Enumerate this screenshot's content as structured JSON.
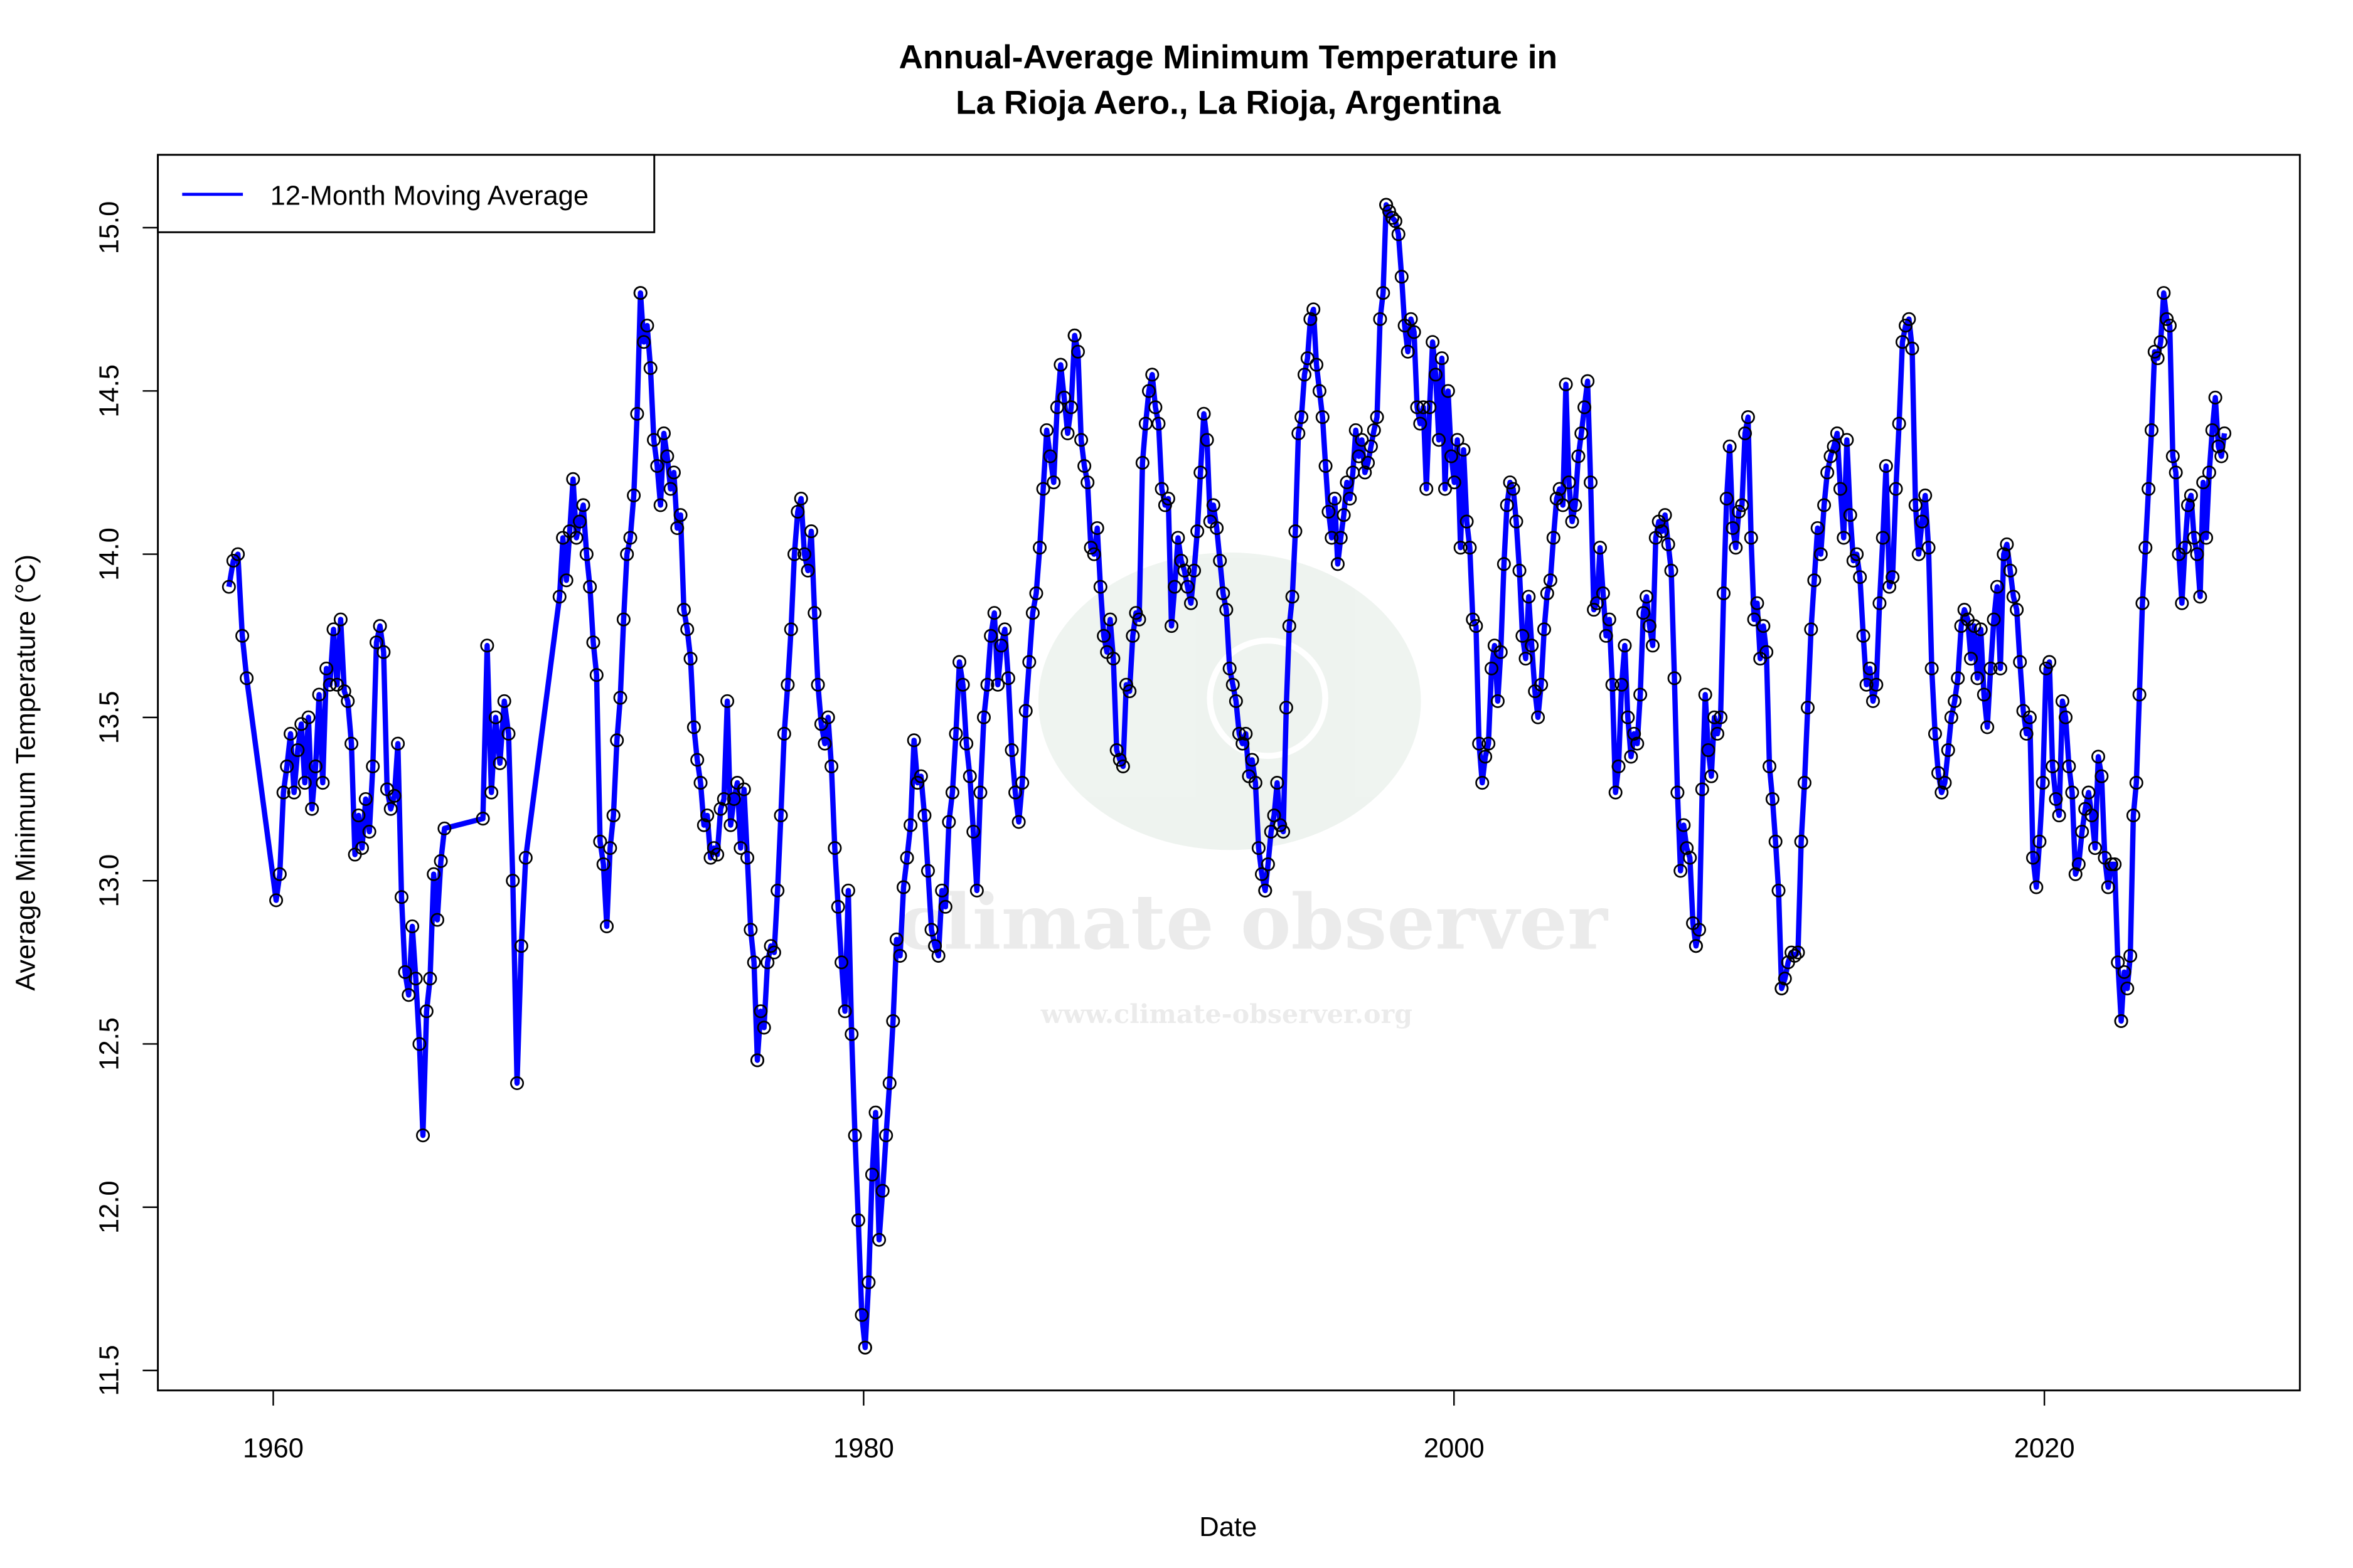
{
  "chart_data": {
    "type": "line",
    "title": [
      "Annual-Average Minimum Temperature in",
      "La Rioja Aero., La Rioja, Argentina"
    ],
    "xlabel": "Date",
    "ylabel": "Average Minimum Temperature (°C)",
    "xlim": [
      1956,
      2029
    ],
    "ylim": [
      11.45,
      15.25
    ],
    "x_ticks": [
      1960,
      1980,
      2000,
      2020
    ],
    "y_ticks": [
      "11.5",
      "12.0",
      "12.5",
      "13.0",
      "13.5",
      "14.0",
      "14.5",
      "15.0"
    ],
    "grid": false,
    "legend": {
      "position": "top-left",
      "entries": [
        "12-Month Moving Average"
      ]
    },
    "line_color": "#0000ff",
    "marker_color": "#000000",
    "series": [
      {
        "name": "12-Month Moving Average",
        "segments": [
          {
            "from": 1958.5,
            "to": 1959.1,
            "values": [
              13.9,
              13.98,
              14.0,
              13.75,
              13.62
            ]
          },
          {
            "from": 1960.1,
            "to": 1965.8,
            "values": [
              12.94,
              13.02,
              13.27,
              13.35,
              13.45,
              13.27,
              13.4,
              13.48,
              13.3,
              13.5,
              13.22,
              13.35,
              13.57,
              13.3,
              13.65,
              13.6,
              13.77,
              13.6,
              13.8,
              13.58,
              13.55,
              13.42,
              13.08,
              13.2,
              13.1,
              13.25,
              13.15,
              13.35,
              13.73,
              13.78,
              13.7,
              13.28,
              13.22,
              13.26,
              13.42,
              12.95,
              12.72,
              12.65,
              12.86,
              12.7,
              12.5,
              12.22,
              12.6,
              12.7,
              13.02,
              12.88,
              13.06,
              13.16
            ]
          },
          {
            "from": 1967.1,
            "to": 1968.55,
            "values": [
              13.19,
              13.72,
              13.27,
              13.5,
              13.36,
              13.55,
              13.45,
              13.0,
              12.38,
              12.8,
              13.07
            ]
          },
          {
            "from": 1969.7,
            "to": 1972.44,
            "values": [
              13.87,
              14.05,
              13.92,
              14.07,
              14.23,
              14.05,
              14.1,
              14.15,
              14.0,
              13.9,
              13.73,
              13.63,
              13.12,
              13.05,
              12.86,
              13.1,
              13.2,
              13.43,
              13.56,
              13.8,
              14.0,
              14.05,
              14.18,
              14.43,
              14.8
            ]
          },
          {
            "from": 1972.44,
            "to": 1976.4,
            "values": [
              14.8,
              14.65,
              14.7,
              14.57,
              14.35,
              14.27,
              14.15,
              14.37,
              14.3,
              14.2,
              14.25,
              14.08,
              14.12,
              13.83,
              13.77,
              13.68,
              13.47,
              13.37,
              13.3,
              13.17,
              13.2,
              13.07,
              13.1,
              13.08,
              13.22,
              13.25,
              13.55,
              13.17,
              13.25,
              13.3,
              13.1,
              13.28,
              13.07,
              12.85,
              12.75,
              12.45
            ]
          },
          {
            "from": 1976.4,
            "to": 1980.05,
            "values": [
              12.45,
              12.6,
              12.55,
              12.75,
              12.8,
              12.78,
              12.97,
              13.2,
              13.45,
              13.6,
              13.77,
              14.0,
              14.13,
              14.17,
              14.0,
              13.95,
              14.07,
              13.82,
              13.6,
              13.48,
              13.42,
              13.5,
              13.35,
              13.1,
              12.92,
              12.75,
              12.6,
              12.97,
              12.53,
              12.22,
              11.96,
              11.67,
              11.57
            ]
          },
          {
            "from": 1980.05,
            "to": 1987.15,
            "values": [
              11.57,
              11.77,
              12.1,
              12.29,
              11.9,
              12.05,
              12.22,
              12.38,
              12.57,
              12.82,
              12.77,
              12.98,
              13.07,
              13.17,
              13.43,
              13.3,
              13.32,
              13.2,
              13.03,
              12.85,
              12.8,
              12.77,
              12.97,
              12.92,
              13.18,
              13.27,
              13.45,
              13.67,
              13.6,
              13.42,
              13.32,
              13.15,
              12.97,
              13.27,
              13.5,
              13.6,
              13.75,
              13.82,
              13.6,
              13.72,
              13.77,
              13.62,
              13.4,
              13.27,
              13.18,
              13.3,
              13.52,
              13.67,
              13.82,
              13.88,
              14.02,
              14.2,
              14.38,
              14.3,
              14.22,
              14.45,
              14.58,
              14.48,
              14.37,
              14.45,
              14.67
            ]
          },
          {
            "from": 1987.15,
            "to": 1993.6,
            "values": [
              14.67,
              14.62,
              14.35,
              14.27,
              14.22,
              14.02,
              14.0,
              14.08,
              13.9,
              13.75,
              13.7,
              13.8,
              13.68,
              13.4,
              13.37,
              13.35,
              13.6,
              13.58,
              13.75,
              13.82,
              13.8,
              14.28,
              14.4,
              14.5,
              14.55,
              14.45,
              14.4,
              14.2,
              14.15,
              14.17,
              13.78,
              13.9,
              14.05,
              13.98,
              13.95,
              13.9,
              13.85,
              13.95,
              14.07,
              14.25,
              14.43,
              14.35,
              14.1,
              14.15,
              14.08,
              13.98,
              13.88,
              13.83,
              13.65,
              13.6,
              13.55,
              13.45,
              13.42,
              13.45,
              13.32,
              13.37,
              13.3,
              13.1,
              13.02,
              12.97
            ]
          },
          {
            "from": 1993.6,
            "to": 1997.7,
            "values": [
              12.97,
              13.05,
              13.15,
              13.2,
              13.3,
              13.17,
              13.15,
              13.53,
              13.78,
              13.87,
              14.07,
              14.37,
              14.42,
              14.55,
              14.6,
              14.72,
              14.75,
              14.58,
              14.5,
              14.42,
              14.27,
              14.13,
              14.05,
              14.17,
              13.97,
              14.05,
              14.12,
              14.22,
              14.17,
              14.25,
              14.38,
              14.3,
              14.35,
              14.25,
              14.28,
              14.33,
              14.38,
              14.42,
              14.72,
              14.8,
              15.07
            ]
          },
          {
            "from": 1997.7,
            "to": 2008.2,
            "values": [
              15.07,
              15.05,
              15.03,
              15.02,
              14.98,
              14.85,
              14.7,
              14.62,
              14.72,
              14.68,
              14.45,
              14.4,
              14.45,
              14.2,
              14.45,
              14.65,
              14.55,
              14.35,
              14.6,
              14.2,
              14.5,
              14.3,
              14.22,
              14.35,
              14.02,
              14.32,
              14.1,
              14.02,
              13.8,
              13.78,
              13.42,
              13.3,
              13.38,
              13.42,
              13.65,
              13.72,
              13.55,
              13.7,
              13.97,
              14.15,
              14.22,
              14.2,
              14.1,
              13.95,
              13.75,
              13.68,
              13.87,
              13.72,
              13.58,
              13.5,
              13.6,
              13.77,
              13.88,
              13.92,
              14.05,
              14.17,
              14.2,
              14.15,
              14.52,
              14.22,
              14.1,
              14.15,
              14.3,
              14.37,
              14.45,
              14.53,
              14.22,
              13.83,
              13.85,
              14.02,
              13.88,
              13.75,
              13.8,
              13.6,
              13.27,
              13.35,
              13.6,
              13.72,
              13.5,
              13.38,
              13.45,
              13.42,
              13.57,
              13.82,
              13.87,
              13.78,
              13.72,
              14.05,
              14.1,
              14.07,
              14.12,
              14.03,
              13.95,
              13.62,
              13.27,
              13.03,
              13.17,
              13.1,
              13.07,
              12.87,
              12.8
            ]
          },
          {
            "from": 2008.2,
            "to": 2011.1,
            "values": [
              12.8,
              12.85,
              13.28,
              13.57,
              13.4,
              13.32,
              13.5,
              13.45,
              13.5,
              13.88,
              14.17,
              14.33,
              14.08,
              14.02,
              14.13,
              14.15,
              14.37,
              14.42,
              14.05,
              13.8,
              13.85,
              13.68,
              13.78,
              13.7,
              13.35,
              13.25,
              13.12,
              12.97,
              12.67
            ]
          },
          {
            "from": 2011.1,
            "to": 2022.6,
            "values": [
              12.67,
              12.7,
              12.75,
              12.78,
              12.77,
              12.78,
              13.12,
              13.3,
              13.53,
              13.77,
              13.92,
              14.08,
              14.0,
              14.15,
              14.25,
              14.3,
              14.33,
              14.37,
              14.2,
              14.05,
              14.35,
              14.12,
              13.98,
              14.0,
              13.93,
              13.75,
              13.6,
              13.65,
              13.55,
              13.6,
              13.85,
              14.05,
              14.27,
              13.9,
              13.93,
              14.2,
              14.4,
              14.65,
              14.7,
              14.72,
              14.63,
              14.15,
              14.0,
              14.1,
              14.18,
              14.02,
              13.65,
              13.45,
              13.33,
              13.27,
              13.3,
              13.4,
              13.5,
              13.55,
              13.62,
              13.78,
              13.83,
              13.8,
              13.68,
              13.78,
              13.62,
              13.77,
              13.57,
              13.47,
              13.65,
              13.8,
              13.9,
              13.65,
              14.0,
              14.03,
              13.95,
              13.87,
              13.83,
              13.67,
              13.52,
              13.45,
              13.5,
              13.07,
              12.98,
              13.12,
              13.3,
              13.65,
              13.67,
              13.35,
              13.25,
              13.2,
              13.55,
              13.5,
              13.35,
              13.27,
              13.02,
              13.05,
              13.15,
              13.22,
              13.27,
              13.2,
              13.1,
              13.38,
              13.32,
              13.07,
              12.98,
              13.05,
              13.05,
              12.75,
              12.57
            ]
          },
          {
            "from": 2022.6,
            "to": 2026.1,
            "values": [
              12.57,
              12.72,
              12.67,
              12.77,
              13.2,
              13.3,
              13.57,
              13.85,
              14.02,
              14.2,
              14.38,
              14.62,
              14.6,
              14.65,
              14.8,
              14.72,
              14.7,
              14.3,
              14.25,
              14.0,
              13.85,
              14.02,
              14.15,
              14.18,
              14.05,
              14.0,
              13.87,
              14.22,
              14.05,
              14.25,
              14.38,
              14.48,
              14.33,
              14.3,
              14.37
            ]
          }
        ]
      }
    ]
  },
  "watermark": {
    "name": "climate observer",
    "url": "www.climate-observer.org"
  }
}
